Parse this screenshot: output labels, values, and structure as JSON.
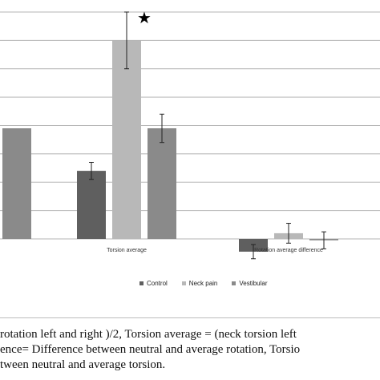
{
  "chart_data": {
    "type": "bar",
    "categories": [
      "",
      "Torsion average",
      "Rotation average difference"
    ],
    "series": [
      {
        "name": "Control",
        "color": "#5f5f5f",
        "values": [
          7.4,
          4.8,
          -0.9
        ],
        "errors": [
          0.8,
          0.6,
          0.5
        ]
      },
      {
        "name": "Neck pain",
        "color": "#b8b8b8",
        "values": [
          null,
          14.0,
          0.4
        ],
        "errors": [
          null,
          2.0,
          0.7
        ]
      },
      {
        "name": "Vestibular",
        "color": "#8a8a8a",
        "values": [
          7.8,
          7.8,
          -0.1
        ],
        "errors": [
          null,
          1.0,
          0.6
        ]
      }
    ],
    "ylim": [
      -2,
      16
    ],
    "grid": true,
    "legend_position": "bottom",
    "annotations": [
      {
        "text": "★",
        "category": "Torsion average",
        "series": "Neck pain"
      }
    ],
    "title": "",
    "xlabel": "",
    "ylabel": ""
  },
  "legend": {
    "items": [
      {
        "label": "Control",
        "color": "#5f5f5f"
      },
      {
        "label": "Neck pain",
        "color": "#b8b8b8"
      },
      {
        "label": "Vestibular",
        "color": "#8a8a8a"
      }
    ]
  },
  "caption": {
    "lines": [
      "rotation left and right )/2, Torsion average = (neck torsion left",
      "ence= Difference between neutral and average rotation,  Torsio",
      "tween neutral and average torsion."
    ]
  }
}
